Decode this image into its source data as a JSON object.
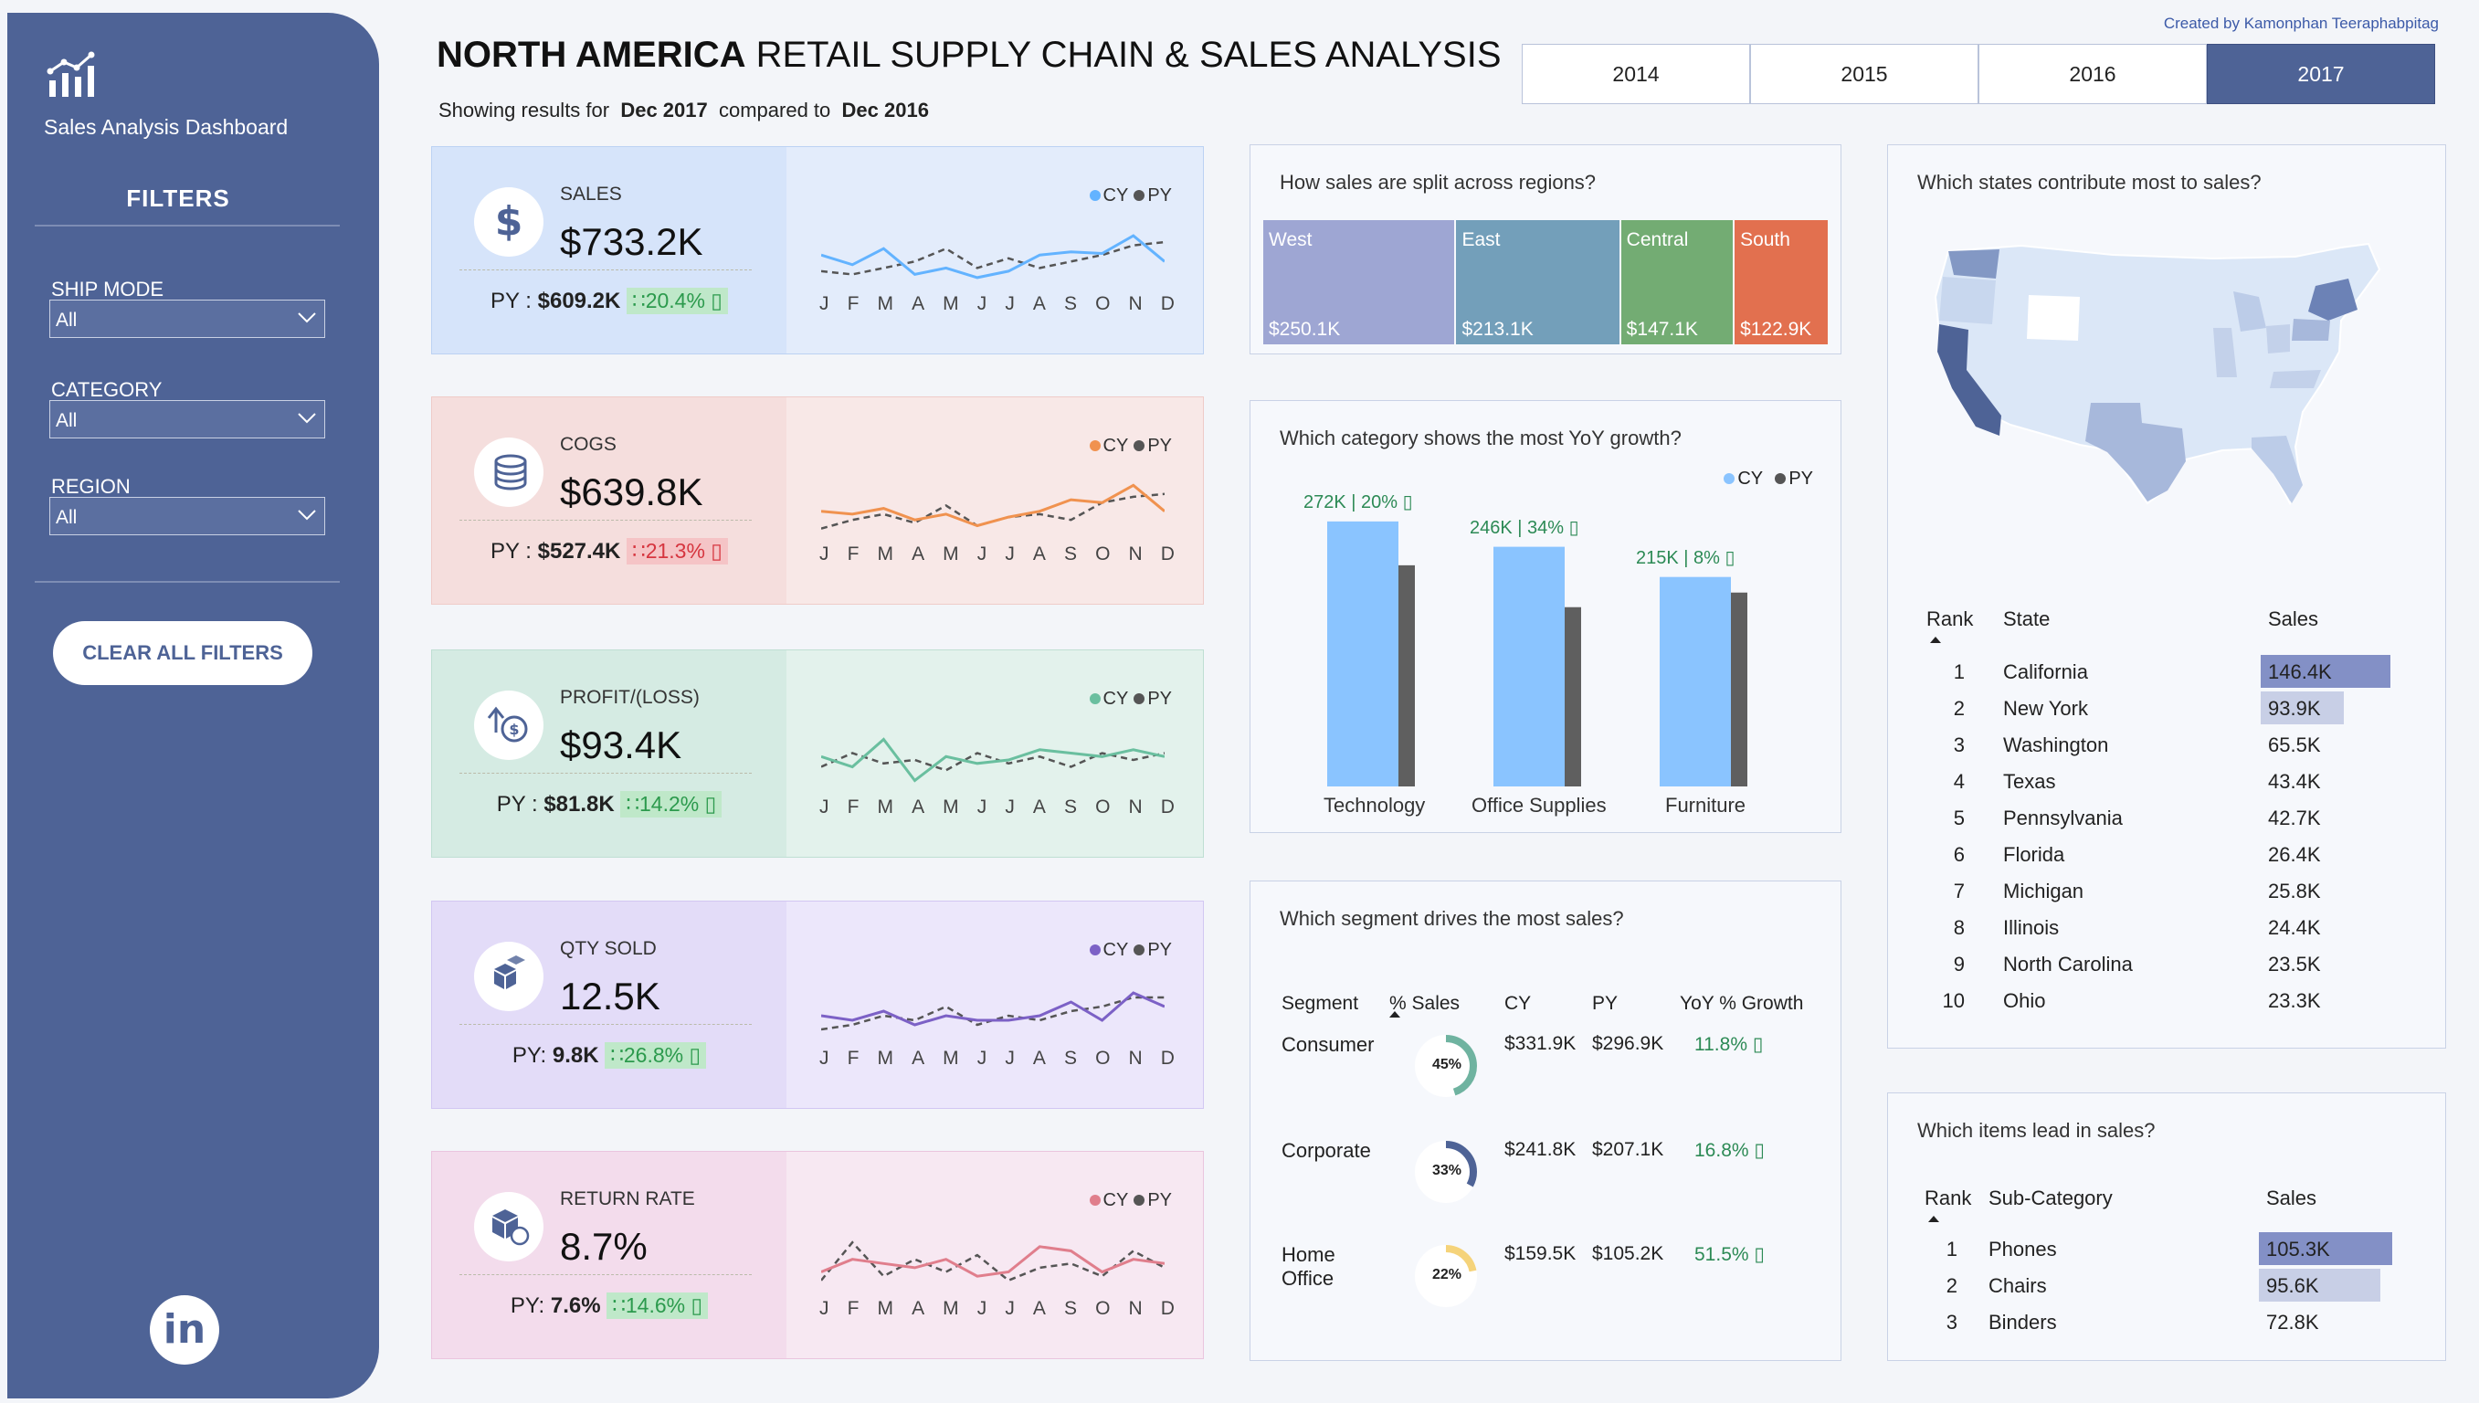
{
  "sidebar": {
    "app_title": "Sales Analysis Dashboard",
    "filters_title": "FILTERS",
    "filters": [
      {
        "label": "SHIP MODE",
        "value": "All"
      },
      {
        "label": "CATEGORY",
        "value": "All"
      },
      {
        "label": "REGION",
        "value": "All"
      }
    ],
    "clear_label": "CLEAR ALL FILTERS",
    "linkedin_label": "in"
  },
  "header": {
    "title_bold": "NORTH AMERICA",
    "title_rest": " RETAIL SUPPLY CHAIN & SALES ANALYSIS",
    "subtitle_prefix": "Showing results for",
    "current_period": "Dec 2017",
    "compare_text": "compared to",
    "previous_period": "Dec 2016",
    "credit": "Created by Kamonphan Teeraphabpitag",
    "years": [
      "2014",
      "2015",
      "2016",
      "2017"
    ],
    "active_year": "2017"
  },
  "colors": {
    "sidebar": "#4e6396",
    "positive": "#2c9a4d",
    "negative": "#d6353f",
    "cy_bar": "#8ac4ff",
    "py_bar": "#5f5f5f"
  },
  "kpis": [
    {
      "label": "SALES",
      "value": "$733.2K",
      "py_prefix": "PY : ",
      "py_value": "$609.2K",
      "change": "20.4%",
      "direction": "up",
      "icon": "dollar-icon",
      "cy_color": "#63b3ff",
      "py_color": "#555555",
      "cy": [
        48,
        42,
        52,
        36,
        40,
        34,
        38,
        48,
        50,
        49,
        60,
        44
      ],
      "py": [
        38,
        36,
        40,
        44,
        52,
        40,
        46,
        40,
        44,
        48,
        54,
        56
      ]
    },
    {
      "label": "COGS",
      "value": "$639.8K",
      "py_prefix": "PY : ",
      "py_value": "$527.4K",
      "change": "21.3%",
      "direction": "down",
      "icon": "coins-icon",
      "cy_color": "#f0924f",
      "py_color": "#555555",
      "cy": [
        46,
        44,
        48,
        40,
        44,
        36,
        42,
        46,
        54,
        52,
        64,
        46
      ],
      "py": [
        34,
        40,
        44,
        38,
        50,
        36,
        42,
        44,
        40,
        52,
        56,
        58
      ]
    },
    {
      "label": "PROFIT/(LOSS)",
      "value": "$93.4K",
      "py_prefix": "PY : ",
      "py_value": "$81.8K",
      "change": "14.2%",
      "direction": "up",
      "icon": "profit-icon",
      "cy_color": "#6abf9f",
      "py_color": "#555555",
      "cy": [
        50,
        44,
        60,
        36,
        50,
        46,
        48,
        54,
        52,
        50,
        54,
        50
      ],
      "py": [
        44,
        52,
        46,
        48,
        42,
        52,
        46,
        50,
        44,
        52,
        48,
        52
      ]
    },
    {
      "label": "QTY SOLD",
      "value": "12.5K",
      "py_prefix": "PY: ",
      "py_value": "9.8K",
      "change": "26.8%",
      "direction": "up",
      "icon": "boxes-icon",
      "cy_color": "#7c61c6",
      "py_color": "#555555",
      "cy": [
        46,
        44,
        48,
        42,
        46,
        44,
        44,
        46,
        52,
        44,
        56,
        50
      ],
      "py": [
        40,
        42,
        46,
        44,
        50,
        42,
        46,
        44,
        48,
        50,
        54,
        54
      ]
    },
    {
      "label": "RETURN RATE",
      "value": "8.7%",
      "py_prefix": "PY: ",
      "py_value": "7.6%",
      "change": "14.6%",
      "direction": "up",
      "icon": "return-icon",
      "cy_color": "#e07e8c",
      "py_color": "#555555",
      "cy": [
        44,
        50,
        48,
        46,
        50,
        42,
        44,
        56,
        54,
        44,
        50,
        48
      ],
      "py": [
        40,
        58,
        42,
        50,
        44,
        52,
        40,
        46,
        48,
        42,
        54,
        46
      ]
    }
  ],
  "month_labels": [
    "J",
    "F",
    "M",
    "A",
    "M",
    "J",
    "J",
    "A",
    "S",
    "O",
    "N",
    "D"
  ],
  "legend": {
    "cy": "CY",
    "py": "PY"
  },
  "regions": {
    "title": "How sales are split across regions?",
    "items": [
      {
        "name": "West",
        "value": "$250.1K",
        "amount": 250.1,
        "color": "#9ea6d3"
      },
      {
        "name": "East",
        "value": "$213.1K",
        "amount": 213.1,
        "color": "#739fba"
      },
      {
        "name": "Central",
        "value": "$147.1K",
        "amount": 147.1,
        "color": "#73ac73"
      },
      {
        "name": "South",
        "value": "$122.9K",
        "amount": 122.9,
        "color": "#e2704f"
      }
    ]
  },
  "category_growth": {
    "title": "Which category shows the most YoY growth?",
    "chart_data": {
      "type": "bar",
      "categories": [
        "Technology",
        "Office Supplies",
        "Furniture"
      ],
      "series": [
        {
          "name": "CY",
          "values": [
            272,
            246,
            215
          ]
        },
        {
          "name": "PY",
          "values": [
            227,
            184,
            199
          ]
        }
      ],
      "data_labels": [
        "272K | 20% ▯",
        "246K | 34% ▯",
        "215K | 8% ▯"
      ],
      "ylim": [
        0,
        300
      ],
      "legend": "top-right"
    }
  },
  "segments": {
    "title": "Which segment drives the most sales?",
    "headers": [
      "Segment",
      "% Sales",
      "CY",
      "PY",
      "YoY % Growth"
    ],
    "rows": [
      {
        "name": "Consumer",
        "pct": "45%",
        "pct_value": 45,
        "color": "#6fb3a0",
        "cy": "$331.9K",
        "py": "$296.9K",
        "growth": "11.8% ▯"
      },
      {
        "name": "Corporate",
        "pct": "33%",
        "pct_value": 33,
        "color": "#4e6396",
        "cy": "$241.8K",
        "py": "$207.1K",
        "growth": "16.8% ▯"
      },
      {
        "name": "Home Office",
        "pct": "22%",
        "pct_value": 22,
        "color": "#f5d37a",
        "cy": "$159.5K",
        "py": "$105.2K",
        "growth": "51.5% ▯"
      }
    ]
  },
  "states": {
    "title": "Which states contribute most to sales?",
    "headers": [
      "Rank",
      "State",
      "Sales"
    ],
    "rows": [
      {
        "rank": "1",
        "state": "California",
        "sales": "146.4K",
        "amount": 146.4
      },
      {
        "rank": "2",
        "state": "New York",
        "sales": "93.9K",
        "amount": 93.9
      },
      {
        "rank": "3",
        "state": "Washington",
        "sales": "65.5K",
        "amount": 65.5
      },
      {
        "rank": "4",
        "state": "Texas",
        "sales": "43.4K",
        "amount": 43.4
      },
      {
        "rank": "5",
        "state": "Pennsylvania",
        "sales": "42.7K",
        "amount": 42.7
      },
      {
        "rank": "6",
        "state": "Florida",
        "sales": "26.4K",
        "amount": 26.4
      },
      {
        "rank": "7",
        "state": "Michigan",
        "sales": "25.8K",
        "amount": 25.8
      },
      {
        "rank": "8",
        "state": "Illinois",
        "sales": "24.4K",
        "amount": 24.4
      },
      {
        "rank": "9",
        "state": "North Carolina",
        "sales": "23.5K",
        "amount": 23.5
      },
      {
        "rank": "10",
        "state": "Ohio",
        "sales": "23.3K",
        "amount": 23.3
      }
    ]
  },
  "subcategories": {
    "title": "Which items lead in sales?",
    "headers": [
      "Rank",
      "Sub-Category",
      "Sales"
    ],
    "rows": [
      {
        "rank": "1",
        "name": "Phones",
        "sales": "105.3K",
        "amount": 105.3
      },
      {
        "rank": "2",
        "name": "Chairs",
        "sales": "95.6K",
        "amount": 95.6
      },
      {
        "rank": "3",
        "name": "Binders",
        "sales": "72.8K",
        "amount": 72.8
      }
    ]
  }
}
